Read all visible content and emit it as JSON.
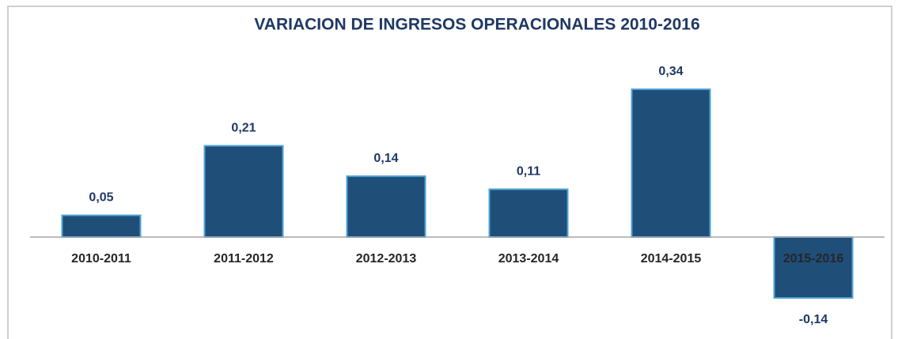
{
  "chart_data": {
    "type": "bar",
    "title": "VARIACION DE INGRESOS OPERACIONALES 2010-2016",
    "categories": [
      "2010-2011",
      "2011-2012",
      "2012-2013",
      "2013-2014",
      "2014-2015",
      "2015-2016"
    ],
    "values": [
      0.05,
      0.21,
      0.14,
      0.11,
      0.34,
      -0.14
    ],
    "value_labels": [
      "0,05",
      "0,21",
      "0,14",
      "0,11",
      "0,34",
      "-0,14"
    ],
    "color": "#1f4e79",
    "ylim": [
      -0.2,
      0.4
    ]
  }
}
